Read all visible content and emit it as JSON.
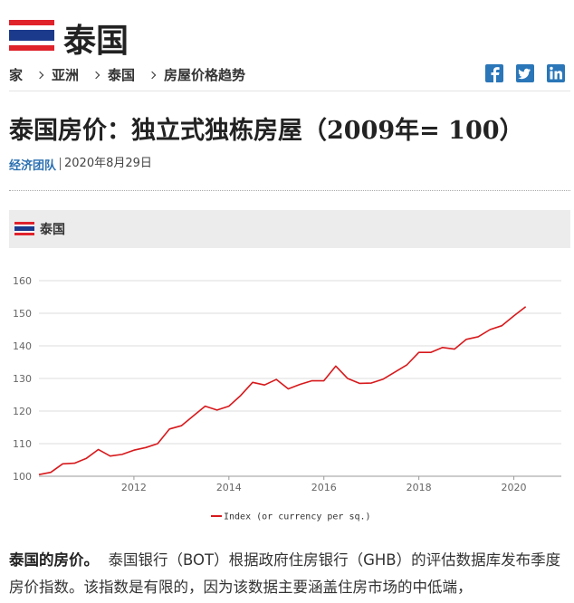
{
  "header": {
    "title": "泰国"
  },
  "breadcrumb": [
    "家",
    "亚洲",
    "泰国",
    "房屋价格趋势"
  ],
  "article": {
    "title": "泰国房价：独立式独栋房屋（2009年= 100）",
    "author": "经济团队",
    "date": "2020年8月29日",
    "section_label": "泰国",
    "lead": "泰国的房价。",
    "body": "泰国银行（BOT）根据政府住房银行（GHB）的评估数据库发布季度房价指数。该指数是有限的，因为该数据主要涵盖住房市场的中低端，"
  },
  "chart_data": {
    "type": "line",
    "x": [
      2010.0,
      2010.25,
      2010.5,
      2010.75,
      2011.0,
      2011.25,
      2011.5,
      2011.75,
      2012.0,
      2012.25,
      2012.5,
      2012.75,
      2013.0,
      2013.25,
      2013.5,
      2013.75,
      2014.0,
      2014.25,
      2014.5,
      2014.75,
      2015.0,
      2015.25,
      2015.5,
      2015.75,
      2016.0,
      2016.25,
      2016.5,
      2016.75,
      2017.0,
      2017.25,
      2017.5,
      2017.75,
      2018.0,
      2018.25,
      2018.5,
      2018.75,
      2019.0,
      2019.25,
      2019.5,
      2019.75,
      2020.0,
      2020.25
    ],
    "series": [
      {
        "name": "Index (or currency per sq.)",
        "color": "#d7191c",
        "values": [
          100.5,
          101.2,
          103.8,
          104.0,
          105.5,
          108.2,
          106.2,
          106.7,
          108.0,
          108.8,
          110.0,
          114.5,
          115.5,
          118.5,
          121.5,
          120.3,
          121.5,
          124.8,
          128.8,
          128.0,
          129.7,
          126.8,
          128.2,
          129.3,
          129.3,
          133.8,
          130.0,
          128.5,
          128.6,
          129.8,
          132.0,
          134.2,
          138.0,
          138.0,
          139.5,
          139.0,
          142.0,
          142.8,
          145.0,
          146.2,
          149.2,
          152.0
        ]
      }
    ],
    "xlim": [
      2010,
      2021
    ],
    "xticks": [
      2012,
      2014,
      2016,
      2018,
      2020
    ],
    "ylim": [
      100,
      160
    ],
    "yticks": [
      100,
      110,
      120,
      130,
      140,
      150,
      160
    ],
    "grid": true,
    "legend": "bottom"
  }
}
